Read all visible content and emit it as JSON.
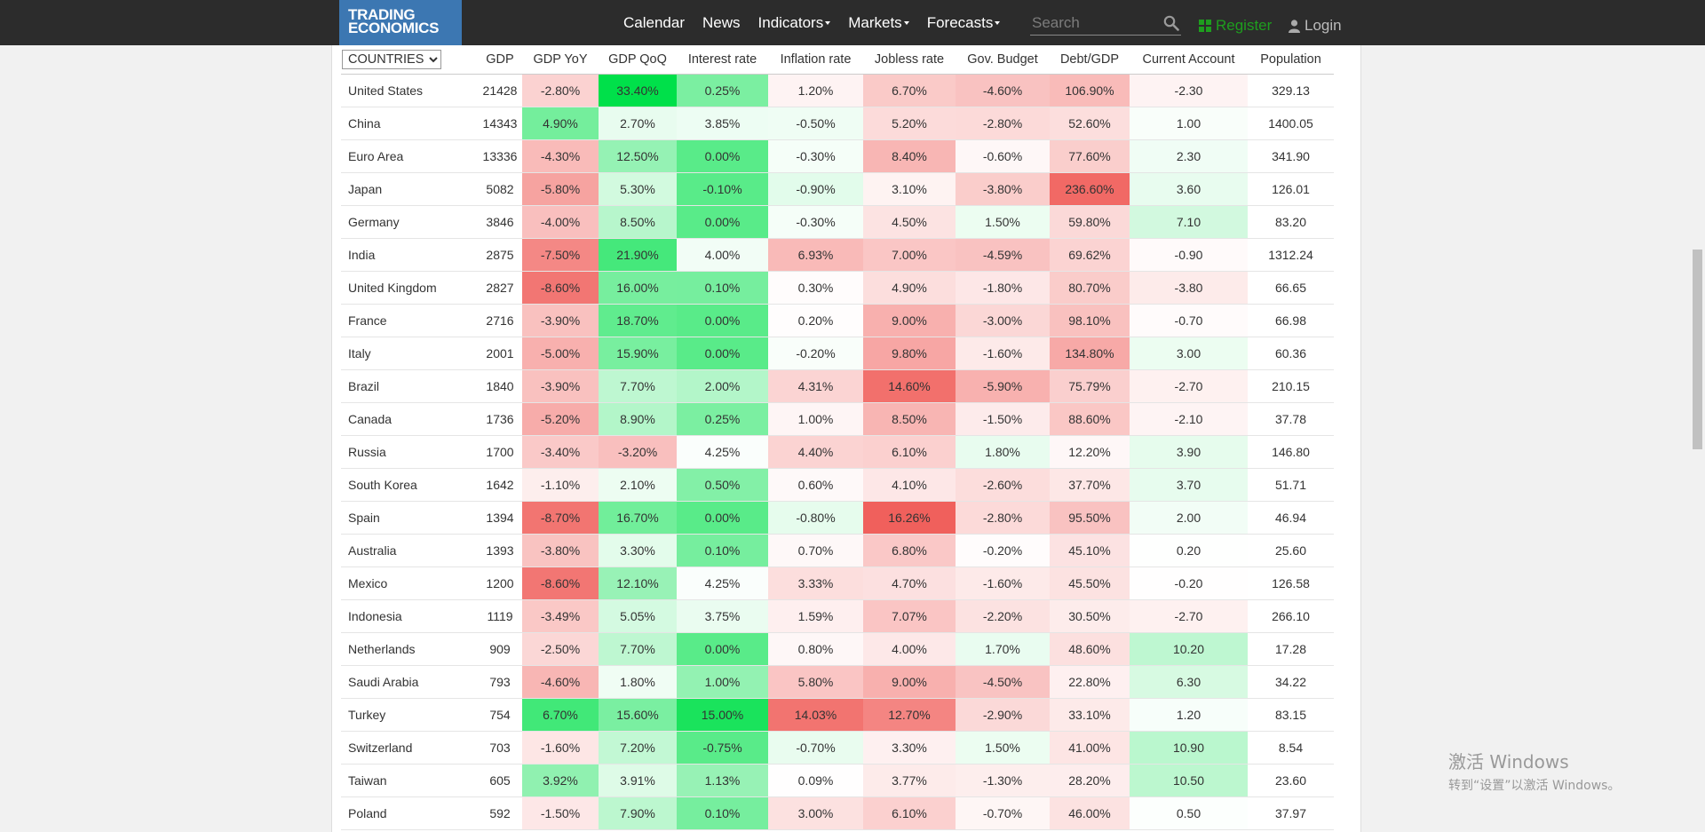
{
  "logo": {
    "line1": "TRADING",
    "line2": "ECONOMICS"
  },
  "nav": {
    "items": [
      {
        "label": "Calendar",
        "dropdown": false
      },
      {
        "label": "News",
        "dropdown": false
      },
      {
        "label": "Indicators",
        "dropdown": true
      },
      {
        "label": "Markets",
        "dropdown": true
      },
      {
        "label": "Forecasts",
        "dropdown": true
      }
    ],
    "search_placeholder": "Search",
    "register": "Register",
    "login": "Login"
  },
  "table": {
    "group_select": "COUNTRIES",
    "columns": [
      "GDP",
      "GDP YoY",
      "GDP QoQ",
      "Interest rate",
      "Inflation rate",
      "Jobless rate",
      "Gov. Budget",
      "Debt/GDP",
      "Current Account",
      "Population"
    ],
    "rows": [
      {
        "country": "United States",
        "values": [
          "21428",
          "-2.80%",
          "33.40%",
          "0.25%",
          "1.20%",
          "6.70%",
          "-4.60%",
          "106.90%",
          "-2.30",
          "329.13"
        ]
      },
      {
        "country": "China",
        "values": [
          "14343",
          "4.90%",
          "2.70%",
          "3.85%",
          "-0.50%",
          "5.20%",
          "-2.80%",
          "52.60%",
          "1.00",
          "1400.05"
        ]
      },
      {
        "country": "Euro Area",
        "values": [
          "13336",
          "-4.30%",
          "12.50%",
          "0.00%",
          "-0.30%",
          "8.40%",
          "-0.60%",
          "77.60%",
          "2.30",
          "341.90"
        ]
      },
      {
        "country": "Japan",
        "values": [
          "5082",
          "-5.80%",
          "5.30%",
          "-0.10%",
          "-0.90%",
          "3.10%",
          "-3.80%",
          "236.60%",
          "3.60",
          "126.01"
        ]
      },
      {
        "country": "Germany",
        "values": [
          "3846",
          "-4.00%",
          "8.50%",
          "0.00%",
          "-0.30%",
          "4.50%",
          "1.50%",
          "59.80%",
          "7.10",
          "83.20"
        ]
      },
      {
        "country": "India",
        "values": [
          "2875",
          "-7.50%",
          "21.90%",
          "4.00%",
          "6.93%",
          "7.00%",
          "-4.59%",
          "69.62%",
          "-0.90",
          "1312.24"
        ]
      },
      {
        "country": "United Kingdom",
        "values": [
          "2827",
          "-8.60%",
          "16.00%",
          "0.10%",
          "0.30%",
          "4.90%",
          "-1.80%",
          "80.70%",
          "-3.80",
          "66.65"
        ]
      },
      {
        "country": "France",
        "values": [
          "2716",
          "-3.90%",
          "18.70%",
          "0.00%",
          "0.20%",
          "9.00%",
          "-3.00%",
          "98.10%",
          "-0.70",
          "66.98"
        ]
      },
      {
        "country": "Italy",
        "values": [
          "2001",
          "-5.00%",
          "15.90%",
          "0.00%",
          "-0.20%",
          "9.80%",
          "-1.60%",
          "134.80%",
          "3.00",
          "60.36"
        ]
      },
      {
        "country": "Brazil",
        "values": [
          "1840",
          "-3.90%",
          "7.70%",
          "2.00%",
          "4.31%",
          "14.60%",
          "-5.90%",
          "75.79%",
          "-2.70",
          "210.15"
        ]
      },
      {
        "country": "Canada",
        "values": [
          "1736",
          "-5.20%",
          "8.90%",
          "0.25%",
          "1.00%",
          "8.50%",
          "-1.50%",
          "88.60%",
          "-2.10",
          "37.78"
        ]
      },
      {
        "country": "Russia",
        "values": [
          "1700",
          "-3.40%",
          "-3.20%",
          "4.25%",
          "4.40%",
          "6.10%",
          "1.80%",
          "12.20%",
          "3.90",
          "146.80"
        ]
      },
      {
        "country": "South Korea",
        "values": [
          "1642",
          "-1.10%",
          "2.10%",
          "0.50%",
          "0.60%",
          "4.10%",
          "-2.60%",
          "37.70%",
          "3.70",
          "51.71"
        ]
      },
      {
        "country": "Spain",
        "values": [
          "1394",
          "-8.70%",
          "16.70%",
          "0.00%",
          "-0.80%",
          "16.26%",
          "-2.80%",
          "95.50%",
          "2.00",
          "46.94"
        ]
      },
      {
        "country": "Australia",
        "values": [
          "1393",
          "-3.80%",
          "3.30%",
          "0.10%",
          "0.70%",
          "6.80%",
          "-0.20%",
          "45.10%",
          "0.20",
          "25.60"
        ]
      },
      {
        "country": "Mexico",
        "values": [
          "1200",
          "-8.60%",
          "12.10%",
          "4.25%",
          "3.33%",
          "4.70%",
          "-1.60%",
          "45.50%",
          "-0.20",
          "126.58"
        ]
      },
      {
        "country": "Indonesia",
        "values": [
          "1119",
          "-3.49%",
          "5.05%",
          "3.75%",
          "1.59%",
          "7.07%",
          "-2.20%",
          "30.50%",
          "-2.70",
          "266.10"
        ]
      },
      {
        "country": "Netherlands",
        "values": [
          "909",
          "-2.50%",
          "7.70%",
          "0.00%",
          "0.80%",
          "4.00%",
          "1.70%",
          "48.60%",
          "10.20",
          "17.28"
        ]
      },
      {
        "country": "Saudi Arabia",
        "values": [
          "793",
          "-4.60%",
          "1.80%",
          "1.00%",
          "5.80%",
          "9.00%",
          "-4.50%",
          "22.80%",
          "6.30",
          "34.22"
        ]
      },
      {
        "country": "Turkey",
        "values": [
          "754",
          "6.70%",
          "15.60%",
          "15.00%",
          "14.03%",
          "12.70%",
          "-2.90%",
          "33.10%",
          "1.20",
          "83.15"
        ]
      },
      {
        "country": "Switzerland",
        "values": [
          "703",
          "-1.60%",
          "7.20%",
          "-0.75%",
          "-0.70%",
          "3.30%",
          "1.50%",
          "41.00%",
          "10.90",
          "8.54"
        ]
      },
      {
        "country": "Taiwan",
        "values": [
          "605",
          "3.92%",
          "3.91%",
          "1.13%",
          "0.09%",
          "3.77%",
          "-1.30%",
          "28.20%",
          "10.50",
          "23.60"
        ]
      },
      {
        "country": "Poland",
        "values": [
          "592",
          "-1.50%",
          "7.90%",
          "0.10%",
          "3.00%",
          "6.10%",
          "-0.70%",
          "46.00%",
          "0.50",
          "37.97"
        ]
      }
    ]
  },
  "watermark": {
    "line1": "激活 Windows",
    "line2": "转到“设置”以激活 Windows。"
  },
  "colors": {
    "navbar": "#2c2c2c",
    "logo_bg": "#3c77b2",
    "register": "#1e9e1e",
    "good_heat": "#00e04a",
    "bad_heat": "#f0605c"
  }
}
